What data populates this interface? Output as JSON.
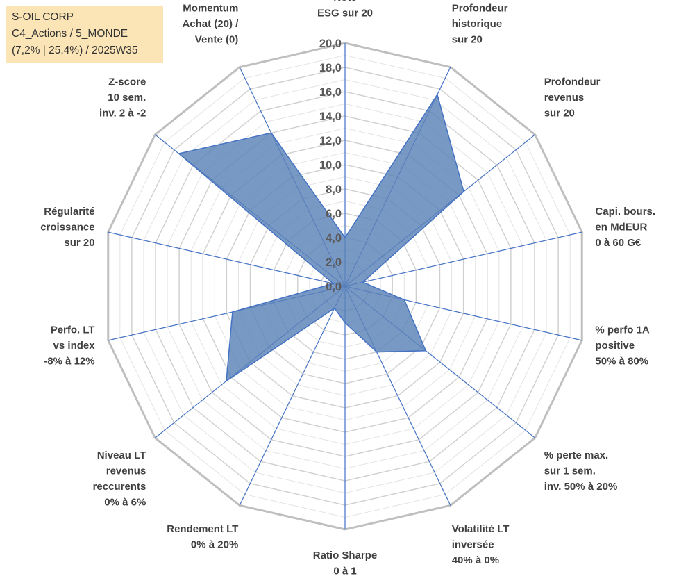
{
  "info": {
    "line1": "S-OIL CORP",
    "line2": "C4_Actions / 5_MONDE",
    "line3": "(7,2% | 25,4%) / 2025W35"
  },
  "colors": {
    "fill": "#5b82b8",
    "stroke": "#4472c4",
    "grid": "#d9d9d9",
    "outer_grid": "#bfbfbf",
    "spoke": "#4472c4",
    "info_bg": "#fbe5b6"
  },
  "chart_data": {
    "type": "radar",
    "title": "",
    "rmax": 20,
    "ticks": [
      "0,0",
      "2,0",
      "4,0",
      "6,0",
      "8,0",
      "10,0",
      "12,0",
      "14,0",
      "16,0",
      "18,0",
      "20,0"
    ],
    "axes": [
      [
        "Note",
        "ESG sur 20"
      ],
      [
        "Profondeur",
        "historique",
        "sur 20"
      ],
      [
        "Profondeur",
        "revenus",
        "sur 20"
      ],
      [
        "Capi. bours.",
        "en MdEUR",
        "0 à 60 G€"
      ],
      [
        "% perfo 1A",
        "positive",
        "50% à 80%"
      ],
      [
        "% perte max.",
        "sur 1 sem.",
        "inv. 50% à 20%"
      ],
      [
        "Volatilité LT",
        "inversée",
        "40% à 0%"
      ],
      [
        "Ratio Sharpe",
        "0 à 1"
      ],
      [
        "Rendement LT",
        "0% à 20%"
      ],
      [
        "Niveau LT",
        "revenus",
        "reccurents",
        "0% à 6%"
      ],
      [
        "Perfo. LT",
        "vs index",
        "-8% à 12%"
      ],
      [
        "Régularité",
        "croissance",
        "sur 20"
      ],
      [
        "Z-score",
        "10 sem.",
        "inv. 2 à -2"
      ],
      [
        "Momentum",
        "Achat (20) /",
        "Vente (0)"
      ]
    ],
    "values": [
      4.0,
      17.5,
      12.5,
      1.5,
      5.0,
      8.5,
      6.0,
      3.0,
      2.0,
      12.5,
      9.5,
      1.0,
      17.5,
      14.0
    ]
  }
}
